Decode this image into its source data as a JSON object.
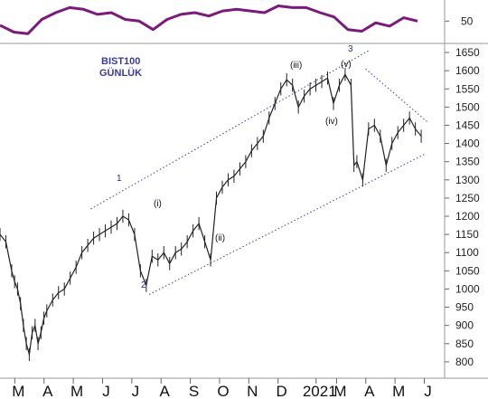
{
  "chart_data": [
    {
      "type": "line",
      "panel": "indicator",
      "y_tick_labels": [
        "50"
      ],
      "y_ticks": [
        50
      ],
      "ylim": [
        30,
        75
      ],
      "color": "#7b1a7b",
      "x": [
        0,
        2,
        4,
        6,
        8,
        10,
        12,
        14,
        16,
        18,
        20,
        22,
        24,
        26,
        28,
        30,
        32,
        34,
        36,
        38,
        40,
        42,
        44,
        46,
        48,
        50,
        52,
        54,
        56,
        58,
        60
      ],
      "values": [
        45,
        37,
        35,
        52,
        60,
        66,
        64,
        58,
        60,
        52,
        50,
        40,
        52,
        58,
        60,
        56,
        62,
        64,
        62,
        60,
        68,
        66,
        66,
        60,
        55,
        40,
        38,
        48,
        44,
        54,
        50
      ]
    },
    {
      "type": "line",
      "panel": "price",
      "title": "BIST100",
      "subtitle": "GÜNLÜK",
      "color": "#222222",
      "ylim": [
        755,
        1665
      ],
      "y_ticks": [
        800,
        850,
        900,
        950,
        1000,
        1050,
        1100,
        1150,
        1200,
        1250,
        1300,
        1350,
        1400,
        1450,
        1500,
        1550,
        1600,
        1650
      ],
      "y_tick_labels": [
        "800",
        "850",
        "900",
        "950",
        "1000",
        "1050",
        "1100",
        "1150",
        "1200",
        "1250",
        "1300",
        "1350",
        "1400",
        "1450",
        "1500",
        "1550",
        "1600",
        "1650"
      ],
      "x_tick_labels": [
        "M",
        "A",
        "M",
        "J",
        "J",
        "A",
        "S",
        "O",
        "N",
        "D",
        "2021",
        "M",
        "A",
        "M",
        "J"
      ],
      "x_tick_positions": [
        1.0,
        2.0,
        3.0,
        4.0,
        5.0,
        6.0,
        7.0,
        8.0,
        9.0,
        10.0,
        11.3,
        12.0,
        13.0,
        14.0,
        15.0
      ],
      "x": [
        0,
        0.2,
        0.4,
        0.5,
        0.6,
        0.7,
        0.8,
        0.9,
        1.0,
        1.1,
        1.2,
        1.3,
        1.4,
        1.5,
        1.6,
        1.8,
        2.0,
        2.2,
        2.4,
        2.6,
        2.8,
        3.0,
        3.2,
        3.4,
        3.6,
        3.8,
        4.0,
        4.2,
        4.4,
        4.6,
        4.8,
        5.0,
        5.2,
        5.4,
        5.6,
        5.8,
        6.0,
        6.2,
        6.4,
        6.6,
        6.8,
        7.0,
        7.2,
        7.4,
        7.6,
        7.8,
        8.0,
        8.2,
        8.4,
        8.6,
        8.8,
        9.0,
        9.2,
        9.4,
        9.6,
        9.8,
        10.0,
        10.2,
        10.4,
        10.6,
        10.8,
        11.0,
        11.2,
        11.4,
        11.6,
        11.8,
        12.0,
        12.1,
        12.2,
        12.4,
        12.6,
        12.8,
        13.0,
        13.2,
        13.4,
        13.6,
        13.8,
        14.0,
        14.2,
        14.4
      ],
      "values": [
        1150,
        1130,
        1050,
        1020,
        1000,
        960,
        900,
        850,
        820,
        880,
        900,
        850,
        880,
        920,
        940,
        970,
        990,
        1000,
        1030,
        1060,
        1100,
        1120,
        1140,
        1150,
        1160,
        1170,
        1180,
        1200,
        1190,
        1150,
        1050,
        1010,
        1090,
        1080,
        1100,
        1070,
        1100,
        1110,
        1130,
        1160,
        1180,
        1130,
        1080,
        1250,
        1280,
        1300,
        1310,
        1330,
        1350,
        1380,
        1400,
        1420,
        1470,
        1510,
        1550,
        1575,
        1560,
        1500,
        1530,
        1550,
        1560,
        1570,
        1580,
        1510,
        1560,
        1590,
        1560,
        1340,
        1350,
        1300,
        1440,
        1450,
        1420,
        1340,
        1400,
        1430,
        1450,
        1470,
        1440,
        1420
      ]
    }
  ],
  "chart_text": {
    "title": "BIST100",
    "subtitle": "GÜNLÜK",
    "wave_labels": {
      "w1": "1",
      "w2": "2",
      "w3": "3",
      "wi": "(i)",
      "wii": "(ii)",
      "wiii": "(iii)",
      "wiv": "(iv)",
      "wv": "(v)"
    }
  },
  "colors": {
    "indicator": "#7b1a7b",
    "price": "#222222",
    "trendline": "#3c3ca8",
    "grid": "#d8d8d8",
    "wave_label": "#2a2a8a"
  }
}
